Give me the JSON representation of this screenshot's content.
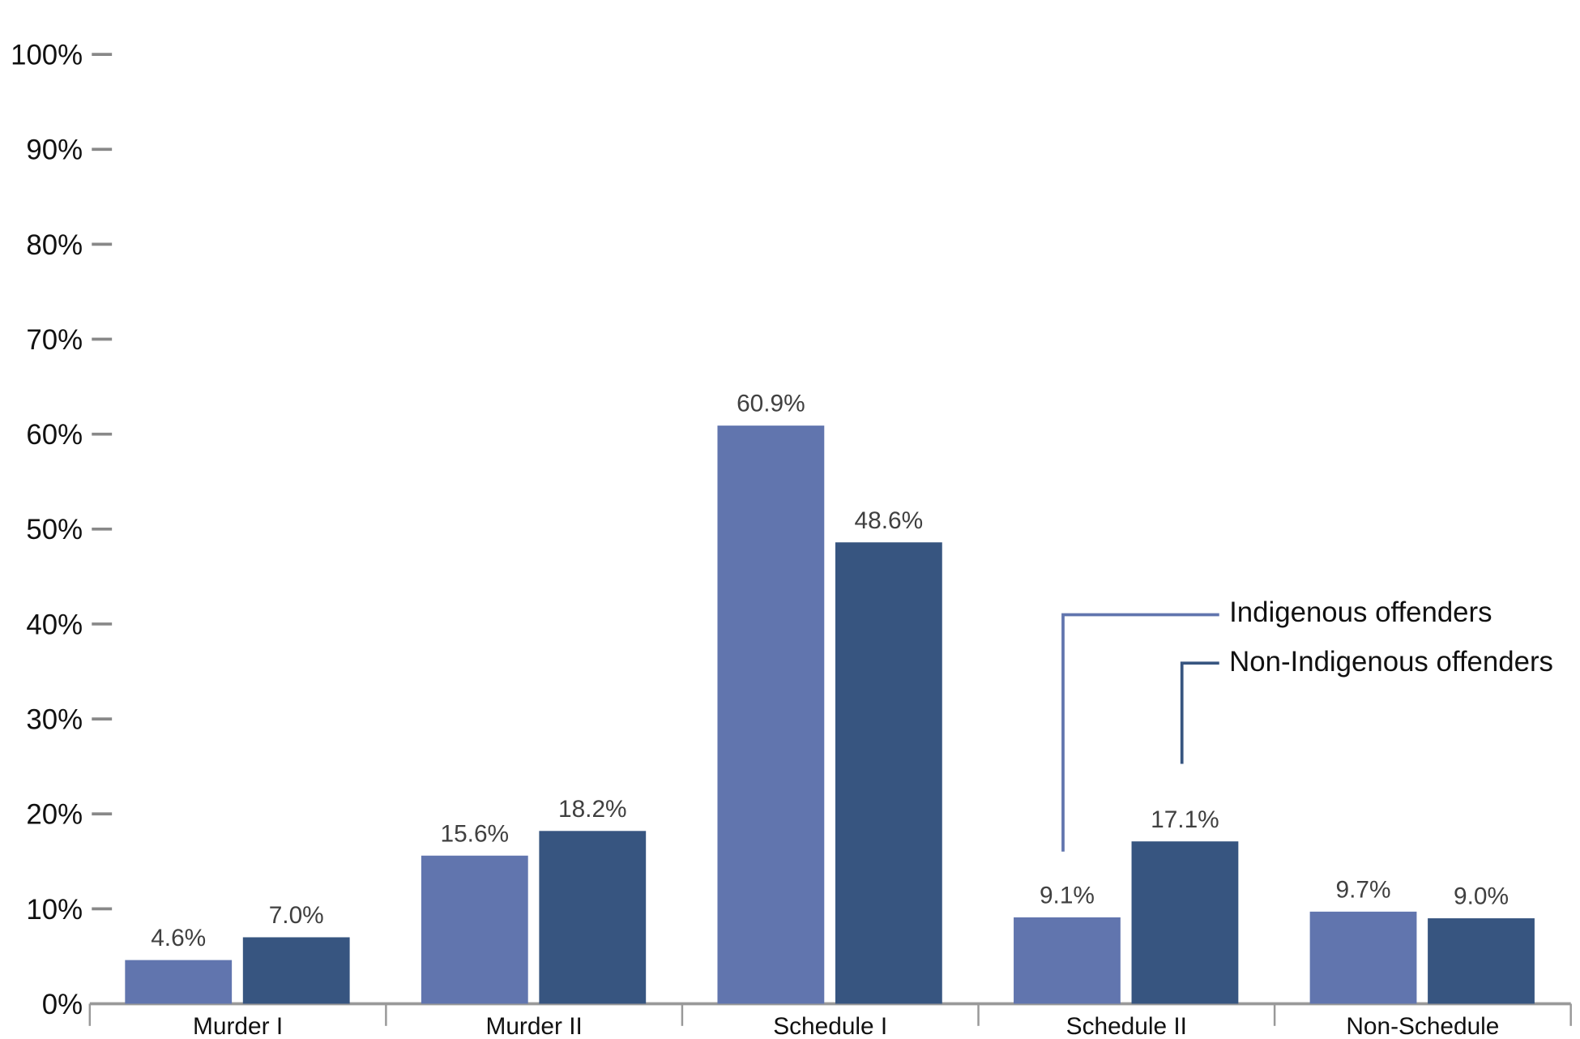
{
  "chart_data": {
    "type": "bar",
    "categories": [
      "Murder I",
      "Murder II",
      "Schedule I",
      "Schedule II",
      "Non-Schedule"
    ],
    "series": [
      {
        "name": "Indigenous offenders",
        "color": "#6175ae",
        "values": [
          4.6,
          15.6,
          60.9,
          9.1,
          9.7
        ],
        "value_labels": [
          "4.6%",
          "15.6%",
          "60.9%",
          "9.1%",
          "9.7%"
        ]
      },
      {
        "name": "Non-Indigenous offenders",
        "color": "#375580",
        "values": [
          7.0,
          18.2,
          48.6,
          17.1,
          9.0
        ],
        "value_labels": [
          "7.0%",
          "18.2%",
          "48.6%",
          "17.1%",
          "9.0%"
        ]
      }
    ],
    "ylim": [
      0,
      100
    ],
    "yticks": [
      {
        "value": 0,
        "label": "0%"
      },
      {
        "value": 10,
        "label": "10%"
      },
      {
        "value": 20,
        "label": "20%"
      },
      {
        "value": 30,
        "label": "30%"
      },
      {
        "value": 40,
        "label": "40%"
      },
      {
        "value": 50,
        "label": "50%"
      },
      {
        "value": 60,
        "label": "60%"
      },
      {
        "value": 70,
        "label": "70%"
      },
      {
        "value": 80,
        "label": "80%"
      },
      {
        "value": 90,
        "label": "90%"
      },
      {
        "value": 100,
        "label": "100%"
      }
    ],
    "legend": "callout"
  }
}
